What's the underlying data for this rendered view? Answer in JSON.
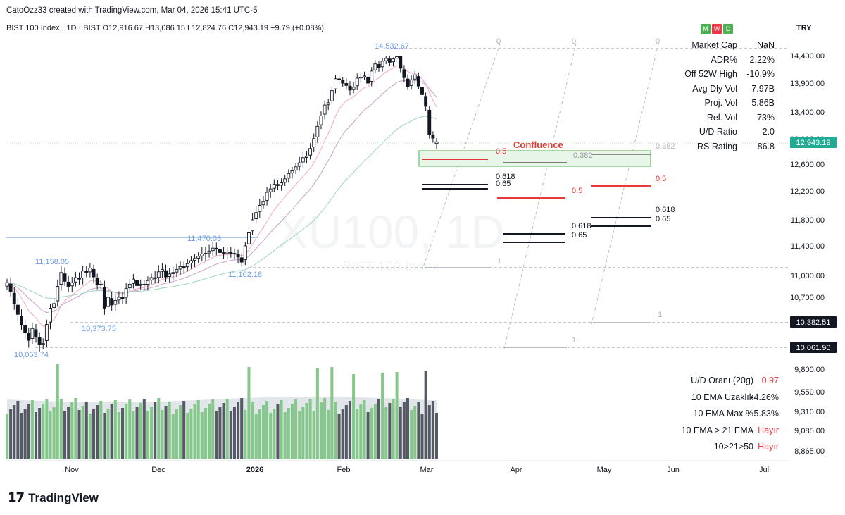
{
  "header": {
    "created": "CatoOzz33 created with TradingView.com, Mar 04, 2026 15:41 UTC-5",
    "symbol_line": "BIST 100 Index · 1D · BIST  O12,916.67  H13,086.15  L12,824.76  C12,943.19  +9.79 (+0.08%)",
    "wdm": [
      {
        "label": "M",
        "color": "#4caf50"
      },
      {
        "label": "W",
        "color": "#f23645"
      },
      {
        "label": "D",
        "color": "#4caf50"
      }
    ],
    "currency": "TRY"
  },
  "watermark": {
    "symbol": "XU100, 1D",
    "name": "BIST 100 Index"
  },
  "stats_top": [
    {
      "label": "Market Cap",
      "value": "NaN"
    },
    {
      "label": "ADR%",
      "value": "2.22%"
    },
    {
      "label": "Off 52W High",
      "value": "-10.9%"
    },
    {
      "label": "Avg Dly Vol",
      "value": "7.97B"
    },
    {
      "label": "Proj. Vol",
      "value": "5.86B"
    },
    {
      "label": "Rel. Vol",
      "value": "73%"
    },
    {
      "label": "U/D Ratio",
      "value": "2.0"
    },
    {
      "label": "RS Rating",
      "value": "86.8"
    }
  ],
  "stats_bottom": [
    {
      "label": "U/D Oranı (20g)",
      "value": "0.97",
      "color": "#f23645"
    },
    {
      "label": "10 EMA Uzaklık",
      "value": "-4.26%",
      "color": "#131722"
    },
    {
      "label": "10 EMA Max %",
      "value": "5.83%",
      "color": "#131722"
    },
    {
      "label": "10 EMA > 21 EMA",
      "value": "Hayır",
      "color": "#f23645"
    },
    {
      "label": "10>21>50",
      "value": "Hayır",
      "color": "#f23645"
    }
  ],
  "footer": {
    "brand": "TradingView",
    "mark": "17"
  },
  "chart_data": {
    "type": "candlestick",
    "title": "BIST 100 Index · 1D · BIST",
    "currency": "TRY",
    "price_axis_ticks": [
      "14,400.00",
      "13,900.00",
      "13,400.00",
      "12,600.00",
      "12,200.00",
      "11,800.00",
      "11,400.00",
      "11,000.00",
      "10,700.00",
      "9,800.00",
      "9,550.00",
      "9,310.00",
      "9,085.00",
      "8,865.00"
    ],
    "price_axis_hidden_tick": "12,900.00",
    "price_badges": [
      {
        "value": "12,943.19",
        "color": "#22ab94"
      },
      {
        "value": "10,382.51",
        "color": "#131722"
      },
      {
        "value": "10,061.90",
        "color": "#131722"
      }
    ],
    "time_axis": [
      {
        "label": "Nov",
        "bold": false
      },
      {
        "label": "Dec",
        "bold": false
      },
      {
        "label": "2026",
        "bold": true
      },
      {
        "label": "Feb",
        "bold": false
      },
      {
        "label": "Mar",
        "bold": false
      },
      {
        "label": "Apr",
        "bold": false
      },
      {
        "label": "May",
        "bold": false
      },
      {
        "label": "Jun",
        "bold": false
      },
      {
        "label": "Jul",
        "bold": false
      }
    ],
    "ohlc_last": {
      "open": 12916.67,
      "high": 13086.15,
      "low": 12824.76,
      "close": 12943.19,
      "change": 9.79,
      "change_pct": 0.08
    },
    "candles_close": [
      10900,
      10780,
      10620,
      10480,
      10350,
      10250,
      10150,
      10300,
      10200,
      10100,
      10110,
      10350,
      10560,
      10620,
      10850,
      11040,
      10920,
      10850,
      10900,
      10970,
      10950,
      11060,
      11040,
      11100,
      10980,
      10870,
      10880,
      10560,
      10700,
      10600,
      10660,
      10700,
      10680,
      10820,
      10880,
      10950,
      10860,
      10880,
      10870,
      10930,
      10970,
      10960,
      11050,
      11080,
      10980,
      11020,
      11040,
      11080,
      11120,
      11110,
      11160,
      11200,
      11230,
      11260,
      11290,
      11300,
      11330,
      11370,
      11360,
      11310,
      11300,
      11320,
      11300,
      11290,
      11250,
      11180,
      11400,
      11600,
      11800,
      11900,
      12000,
      12050,
      12180,
      12230,
      12300,
      12280,
      12320,
      12380,
      12460,
      12500,
      12560,
      12620,
      12700,
      12720,
      12840,
      12990,
      13180,
      13340,
      13520,
      13560,
      13770,
      13980,
      13960,
      13900,
      13860,
      13780,
      13830,
      13990,
      14010,
      14030,
      13900,
      14120,
      14250,
      14180,
      14300,
      14350,
      14280,
      14340,
      14420,
      14170,
      14000,
      13840,
      13960,
      14050,
      13850,
      13700,
      13500,
      13050,
      13000,
      12943.19
    ],
    "price_labels": [
      {
        "text": "14,532.67",
        "value": 14532.67
      },
      {
        "text": "11,470.03",
        "value": 11470.03
      },
      {
        "text": "11,158.05",
        "value": 11158.05
      },
      {
        "text": "11,102.18",
        "value": 11102.18
      },
      {
        "text": "10,373.75",
        "value": 10373.75
      },
      {
        "text": "10,053.74",
        "value": 10053.74
      }
    ],
    "fib_levels": [
      {
        "label": "0"
      },
      {
        "label": "0.382"
      },
      {
        "label": "0.5"
      },
      {
        "label": "0.618"
      },
      {
        "label": "0.65"
      },
      {
        "label": "1"
      }
    ],
    "annotation": "Confluence",
    "indicators": [
      "EMA 10",
      "EMA 21",
      "EMA 50",
      "Volume"
    ]
  }
}
